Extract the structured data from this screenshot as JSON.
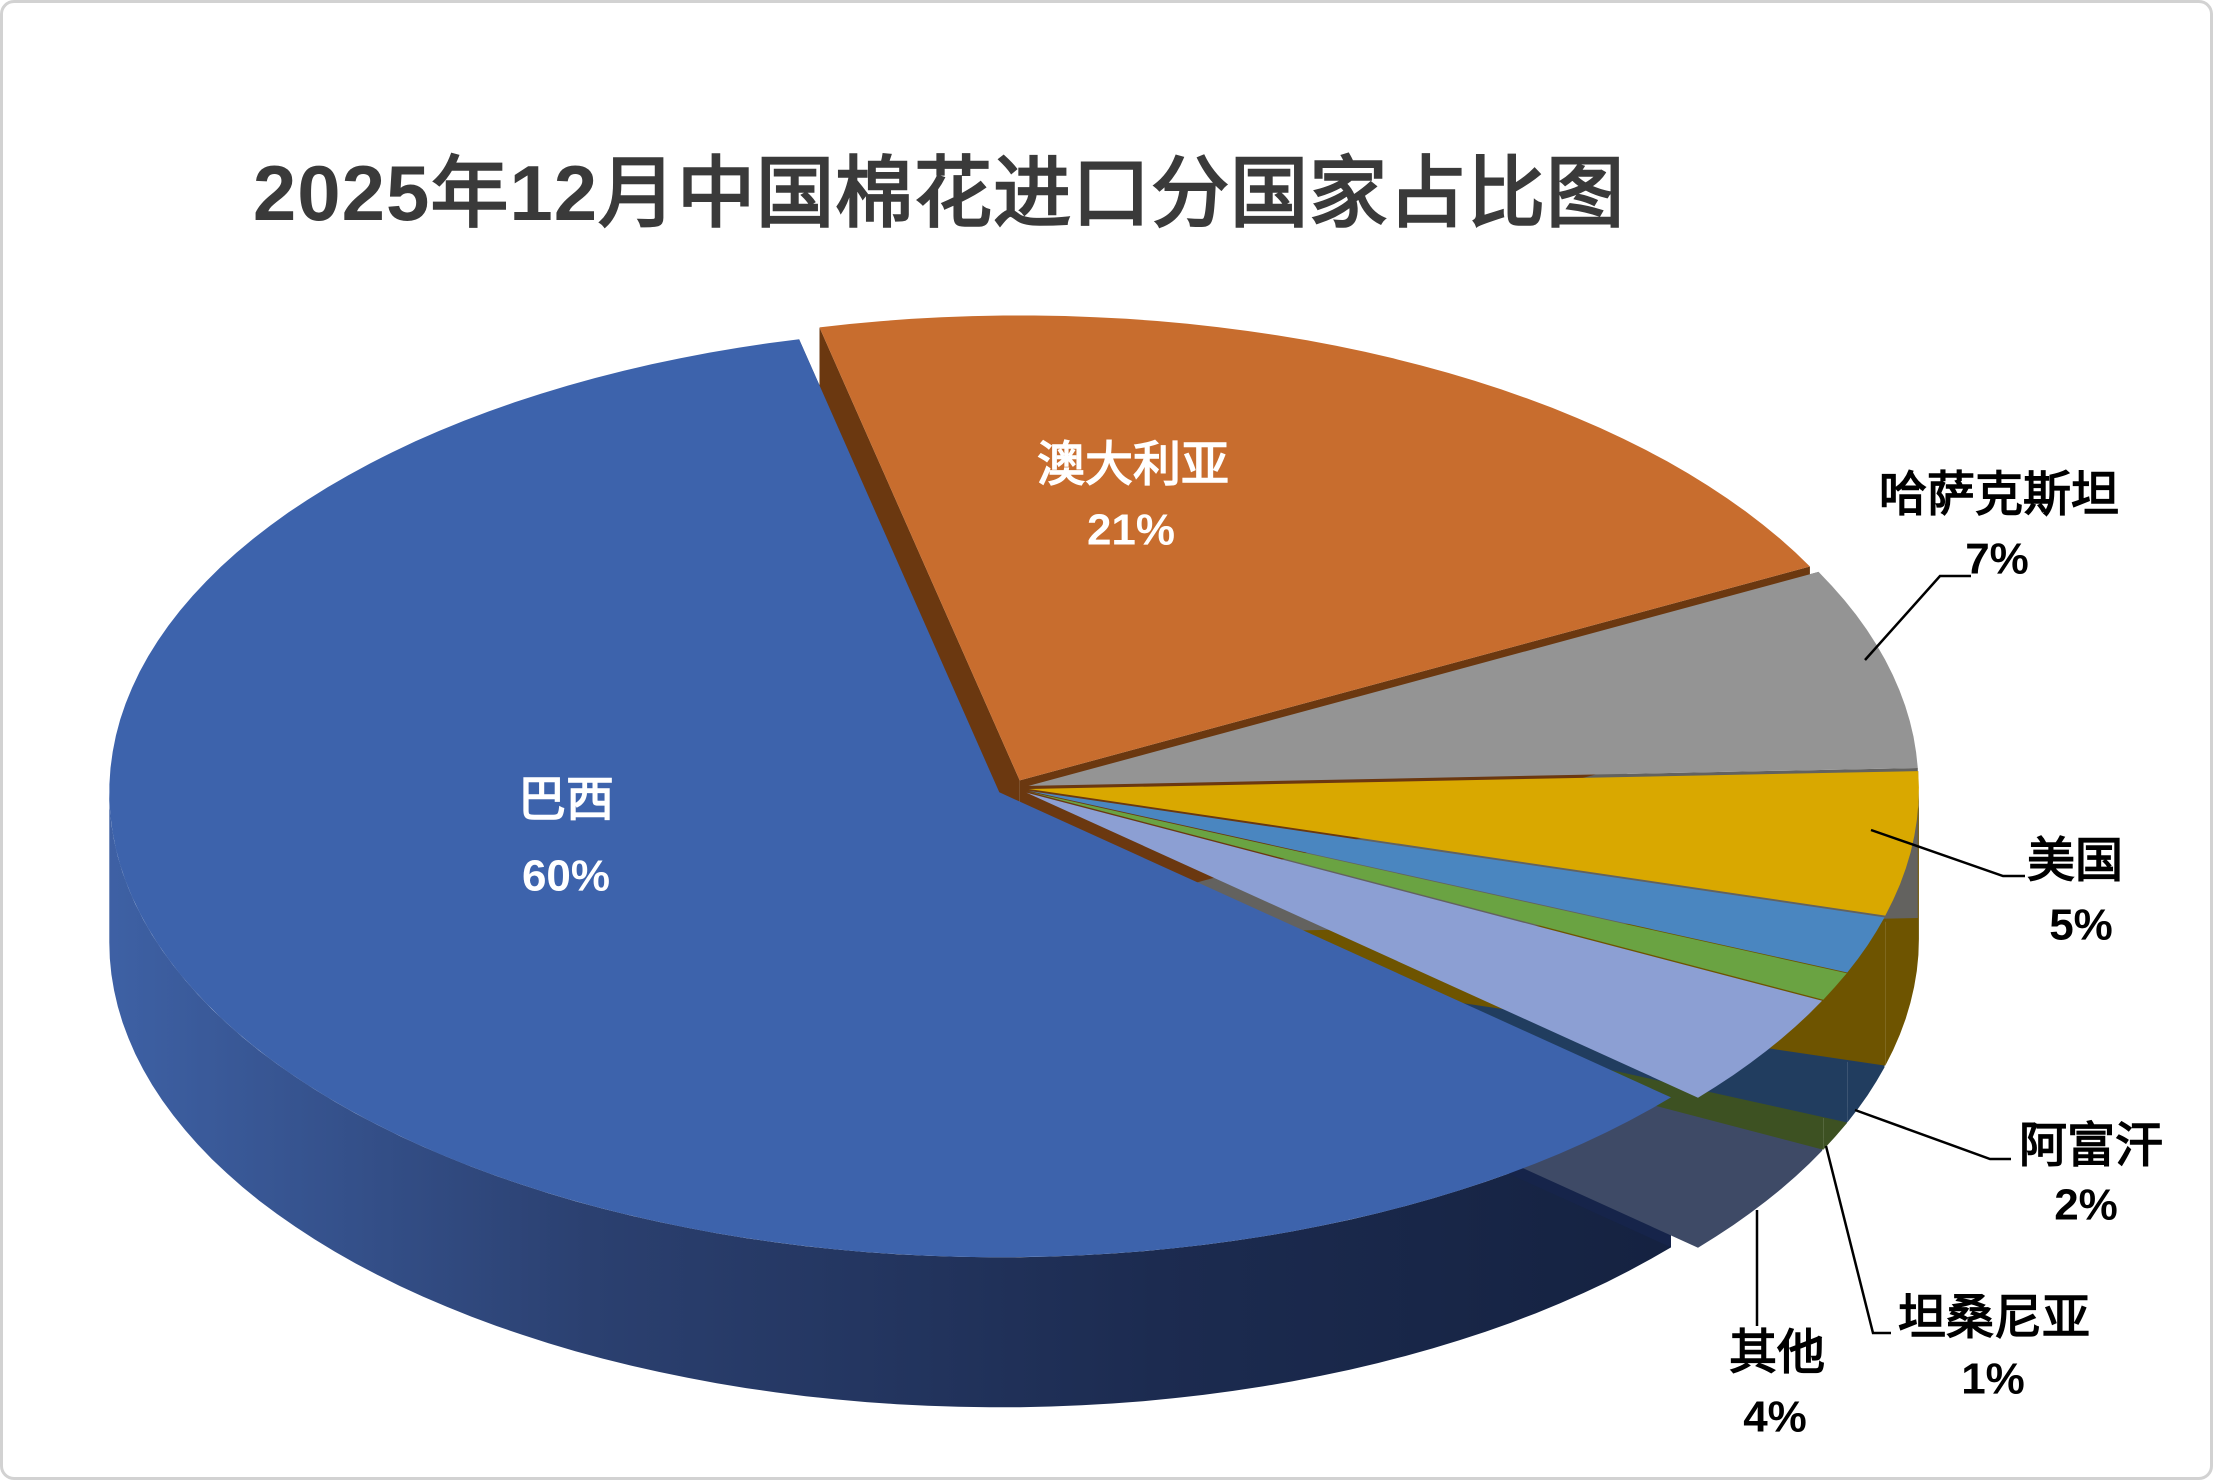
{
  "page": {
    "background": "#FFFFFF",
    "border_color": "#D2D2D2"
  },
  "chart_data": {
    "type": "pie",
    "effect": "3d-exploded",
    "title": "2025年12月中国棉花进口分国家占比图",
    "title_color": "#3A3A3A",
    "inside_label_color": "#FFFFFF",
    "outside_label_color": "#000000",
    "leader_line_color": "#000000",
    "start_angle_deg": -13,
    "legend": "none",
    "slices": [
      {
        "id": "australia",
        "label": "澳大利亚",
        "value_pct": 21,
        "pct_label": "21%",
        "color": "#C86D2E",
        "side_color": "#6B3810",
        "label_placement": "inside"
      },
      {
        "id": "kazakhstan",
        "label": "哈萨克斯坦",
        "value_pct": 7,
        "pct_label": "7%",
        "color": "#949494",
        "side_color": "#63625F",
        "label_placement": "outside"
      },
      {
        "id": "usa",
        "label": "美国",
        "value_pct": 5,
        "pct_label": "5%",
        "color": "#D9A800",
        "side_color": "#6E5400",
        "label_placement": "outside"
      },
      {
        "id": "afghanistan",
        "label": "阿富汗",
        "value_pct": 2,
        "pct_label": "2%",
        "color": "#4A86C0",
        "side_color": "#213D5F",
        "label_placement": "outside"
      },
      {
        "id": "tanzania",
        "label": "坦桑尼亚",
        "value_pct": 1,
        "pct_label": "1%",
        "color": "#6AA342",
        "side_color": "#3D5122",
        "label_placement": "outside"
      },
      {
        "id": "other",
        "label": "其他",
        "value_pct": 4,
        "pct_label": "4%",
        "color": "#8C9FD3",
        "side_color": "#3E4A66",
        "label_placement": "outside"
      },
      {
        "id": "brazil",
        "label": "巴西",
        "value_pct": 60,
        "pct_label": "60%",
        "color": "#3D63AC",
        "side_color": "#16244A",
        "label_placement": "inside"
      }
    ]
  }
}
